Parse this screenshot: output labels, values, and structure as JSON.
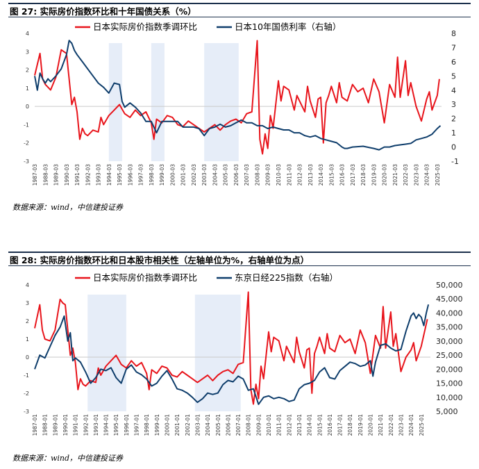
{
  "charts": [
    {
      "figure_title": "图 27: 实际房价指数环比和十年国债关系（%）",
      "source": "数据来源：wind，中信建投证券",
      "legend": [
        "日本实际房价指数季调环比",
        "日本10年国债利率（右轴）"
      ]
    },
    {
      "figure_title": "图 28: 实际房价指数环比和日本股市相关性（左轴单位为%，右轴单位为点）",
      "source": "数据来源：wind，中信建投证券",
      "legend": [
        "日本实际房价指数季调环比",
        "东京日经225指数（右轴）"
      ]
    }
  ],
  "chart_data": [
    {
      "type": "line",
      "x_range": [
        1987.0,
        2025.4
      ],
      "x_ticks": [
        "1987-03",
        "1988-03",
        "1989-03",
        "1990-03",
        "1991-03",
        "1992-03",
        "1993-03",
        "1994-03",
        "1995-03",
        "1996-03",
        "1997-03",
        "1998-03",
        "1999-03",
        "2000-03",
        "2001-03",
        "2002-03",
        "2003-03",
        "2004-03",
        "2005-03",
        "2006-03",
        "2007-03",
        "2008-03",
        "2009-03",
        "2010-03",
        "2011-03",
        "2012-03",
        "2013-03",
        "2014-03",
        "2015-03",
        "2016-03",
        "2017-03",
        "2018-03",
        "2019-03",
        "2020-03",
        "2021-03",
        "2022-03",
        "2023-03",
        "2024-03",
        "2025-03"
      ],
      "y_left": {
        "range": [
          -3,
          4
        ],
        "ticks": [
          "4",
          "3",
          "2",
          "1",
          "0",
          "-1",
          "-2",
          "-3"
        ]
      },
      "y_right": {
        "range": [
          -1,
          8
        ],
        "ticks": [
          "8",
          "7",
          "6",
          "5",
          "4",
          "3",
          "2",
          "1",
          "0",
          "-1"
        ]
      },
      "shaded_x_ranges": [
        [
          1994.0,
          1995.25
        ],
        [
          1998.0,
          1999.25
        ],
        [
          2003.0,
          2006.25
        ]
      ],
      "series": [
        {
          "name": "日本实际房价指数季调环比",
          "axis": "left",
          "color": "#e8141b",
          "x": [
            1987.0,
            1987.5,
            1987.75,
            1988.0,
            1988.5,
            1989.0,
            1989.5,
            1989.75,
            1990.0,
            1990.5,
            1990.75,
            1991.0,
            1991.25,
            1991.5,
            1991.75,
            1992.0,
            1992.5,
            1993.0,
            1993.25,
            1993.5,
            1994.0,
            1994.5,
            1995.0,
            1995.5,
            1996.0,
            1996.5,
            1997.0,
            1997.5,
            1998.0,
            1998.25,
            1998.5,
            1999.0,
            1999.5,
            2000.0,
            2000.5,
            2001.0,
            2001.5,
            2002.0,
            2002.5,
            2003.0,
            2003.5,
            2004.0,
            2004.5,
            2005.0,
            2005.5,
            2006.0,
            2006.5,
            2007.0,
            2007.5,
            2008.0,
            2008.25,
            2008.5,
            2008.75,
            2009.0,
            2009.25,
            2009.5,
            2010.0,
            2010.25,
            2010.5,
            2011.0,
            2011.5,
            2011.75,
            2012.0,
            2012.5,
            2012.75,
            2013.0,
            2013.5,
            2013.75,
            2014.0,
            2014.25,
            2014.5,
            2014.75,
            2015.0,
            2015.5,
            2015.75,
            2016.0,
            2016.5,
            2017.0,
            2017.5,
            2018.0,
            2018.5,
            2019.0,
            2019.5,
            2020.0,
            2020.5,
            2021.0,
            2021.25,
            2021.5,
            2022.0,
            2022.25,
            2022.5,
            2023.0,
            2023.5,
            2024.0,
            2024.25,
            2024.5,
            2025.0,
            2025.2
          ],
          "y": [
            1.7,
            2.9,
            1.5,
            1.2,
            0.9,
            1.6,
            3.1,
            3.0,
            2.9,
            0.1,
            0.5,
            -0.3,
            -1.8,
            -1.2,
            -1.5,
            -1.6,
            -1.3,
            -1.4,
            -0.6,
            -1.0,
            -0.5,
            -0.2,
            0.1,
            -0.4,
            -0.6,
            -0.2,
            -0.5,
            -0.3,
            -0.9,
            -1.8,
            -0.7,
            -0.9,
            -0.5,
            -0.6,
            -1.0,
            -1.1,
            -0.8,
            -1.0,
            -1.2,
            -1.4,
            -1.2,
            -1.0,
            -1.3,
            -1.0,
            -0.8,
            -0.7,
            -0.9,
            -0.4,
            -0.3,
            3.6,
            -1.8,
            -2.6,
            -1.5,
            -2.3,
            -0.5,
            -1.2,
            1.4,
            0.3,
            1.1,
            0.9,
            -0.2,
            0.6,
            0.3,
            -0.3,
            1.1,
            0.3,
            -0.6,
            0.4,
            0.5,
            -2.0,
            0.2,
            0.6,
            1.1,
            0.2,
            1.3,
            0.5,
            0.3,
            1.2,
            0.8,
            1.0,
            0.2,
            1.5,
            0.8,
            -0.9,
            1.2,
            0.5,
            2.7,
            0.5,
            2.5,
            0.6,
            1.3,
            0.0,
            -0.8,
            0.4,
            0.8,
            -0.2,
            0.6,
            1.5
          ]
        },
        {
          "name": "日本10年国债利率（右轴）",
          "axis": "right",
          "color": "#0e3d6b",
          "x": [
            1987.0,
            1987.25,
            1987.5,
            1987.75,
            1988.0,
            1988.25,
            1988.5,
            1989.0,
            1989.5,
            1990.0,
            1990.25,
            1990.5,
            1990.75,
            1991.0,
            1991.5,
            1992.0,
            1992.5,
            1993.0,
            1993.5,
            1994.0,
            1994.5,
            1995.0,
            1995.25,
            1995.5,
            1996.0,
            1996.5,
            1997.0,
            1997.5,
            1998.0,
            1998.5,
            1999.0,
            1999.5,
            2000.0,
            2000.5,
            2001.0,
            2001.5,
            2002.0,
            2002.5,
            2003.0,
            2003.5,
            2004.0,
            2004.5,
            2005.0,
            2005.5,
            2006.0,
            2006.5,
            2007.0,
            2007.5,
            2008.0,
            2008.5,
            2009.0,
            2009.5,
            2010.0,
            2010.5,
            2011.0,
            2011.5,
            2012.0,
            2012.5,
            2013.0,
            2013.5,
            2014.0,
            2014.5,
            2015.0,
            2015.5,
            2016.0,
            2016.25,
            2016.5,
            2017.0,
            2018.0,
            2019.0,
            2019.5,
            2020.0,
            2020.5,
            2021.0,
            2022.0,
            2022.5,
            2023.0,
            2023.5,
            2024.0,
            2024.5,
            2025.0,
            2025.3
          ],
          "y": [
            5.0,
            4.0,
            5.2,
            4.8,
            4.5,
            4.8,
            4.6,
            5.0,
            5.5,
            6.5,
            7.5,
            7.3,
            6.8,
            6.5,
            6.0,
            5.5,
            5.0,
            4.5,
            4.2,
            3.8,
            4.5,
            4.4,
            3.2,
            2.8,
            3.1,
            2.8,
            2.4,
            1.8,
            1.8,
            1.0,
            1.8,
            1.8,
            1.8,
            1.8,
            1.4,
            1.4,
            1.4,
            1.3,
            0.8,
            1.3,
            1.4,
            1.6,
            1.4,
            1.5,
            1.7,
            1.9,
            1.7,
            1.7,
            1.5,
            1.5,
            1.3,
            1.4,
            1.3,
            1.2,
            1.2,
            1.0,
            1.0,
            0.8,
            0.7,
            0.8,
            0.6,
            0.5,
            0.4,
            0.3,
            0.0,
            -0.1,
            -0.1,
            0.0,
            0.05,
            -0.1,
            -0.2,
            0.0,
            0.0,
            0.1,
            0.2,
            0.25,
            0.5,
            0.6,
            0.7,
            0.9,
            1.3,
            1.5
          ]
        }
      ]
    },
    {
      "type": "line",
      "x_range": [
        1987.0,
        2025.9
      ],
      "x_ticks": [
        "1987-01",
        "1988-01",
        "1989-01",
        "1990-01",
        "1991-01",
        "1992-01",
        "1993-01",
        "1994-01",
        "1995-01",
        "1996-01",
        "1997-01",
        "1998-01",
        "1999-01",
        "2000-01",
        "2001-01",
        "2002-01",
        "2003-01",
        "2004-01",
        "2005-01",
        "2006-01",
        "2007-01",
        "2008-01",
        "2009-01",
        "2010-01",
        "2011-01",
        "2012-01",
        "2013-01",
        "2014-01",
        "2015-01",
        "2016-01",
        "2017-01",
        "2018-01",
        "2019-01",
        "2020-01",
        "2021-01",
        "2022-01",
        "2023-01",
        "2024-01",
        "2025-01"
      ],
      "y_left": {
        "range": [
          -3,
          4
        ],
        "ticks": [
          "4",
          "3",
          "2",
          "1",
          "0",
          "-1",
          "-2",
          "-3"
        ]
      },
      "y_right": {
        "range": [
          5000,
          50000
        ],
        "ticks": [
          "50,000",
          "45,000",
          "40,000",
          "35,000",
          "30,000",
          "25,000",
          "20,000",
          "15,000",
          "10,000",
          "5,000"
        ]
      },
      "shaded_x_ranges": [
        [
          1992.2,
          1996.0
        ],
        [
          2002.75,
          2007.25
        ]
      ],
      "series": [
        {
          "name": "日本实际房价指数季调环比",
          "axis": "left",
          "color": "#e8141b",
          "x": [
            1987.0,
            1987.5,
            1987.75,
            1988.0,
            1988.5,
            1989.0,
            1989.5,
            1989.75,
            1990.0,
            1990.5,
            1990.75,
            1991.0,
            1991.25,
            1991.5,
            1991.75,
            1992.0,
            1992.5,
            1993.0,
            1993.25,
            1993.5,
            1994.0,
            1994.5,
            1995.0,
            1995.5,
            1996.0,
            1996.5,
            1997.0,
            1997.5,
            1998.0,
            1998.25,
            1998.5,
            1999.0,
            1999.5,
            2000.0,
            2000.5,
            2001.0,
            2001.5,
            2002.0,
            2002.5,
            2003.0,
            2003.5,
            2004.0,
            2004.5,
            2005.0,
            2005.5,
            2006.0,
            2006.5,
            2007.0,
            2007.5,
            2008.0,
            2008.25,
            2008.5,
            2008.75,
            2009.0,
            2009.25,
            2009.5,
            2010.0,
            2010.25,
            2010.5,
            2011.0,
            2011.5,
            2011.75,
            2012.0,
            2012.5,
            2012.75,
            2013.0,
            2013.5,
            2013.75,
            2014.0,
            2014.25,
            2014.5,
            2014.75,
            2015.0,
            2015.5,
            2015.75,
            2016.0,
            2016.5,
            2017.0,
            2017.5,
            2018.0,
            2018.5,
            2019.0,
            2019.5,
            2020.0,
            2020.5,
            2021.0,
            2021.25,
            2021.5,
            2022.0,
            2022.25,
            2022.5,
            2023.0,
            2023.5,
            2024.0,
            2024.25,
            2024.5,
            2025.0,
            2025.6
          ],
          "y": [
            1.6,
            2.9,
            1.5,
            1.0,
            0.9,
            1.5,
            3.2,
            3.0,
            2.9,
            0.1,
            0.5,
            -0.3,
            -1.8,
            -1.2,
            -1.5,
            -1.6,
            -1.3,
            -1.4,
            -0.6,
            -1.0,
            -0.5,
            -0.2,
            0.1,
            -0.4,
            -0.6,
            -0.2,
            -0.5,
            -0.3,
            -0.9,
            -1.8,
            -0.7,
            -0.9,
            -0.5,
            -0.6,
            -1.0,
            -1.1,
            -0.8,
            -1.0,
            -1.2,
            -1.4,
            -1.2,
            -1.0,
            -1.3,
            -1.0,
            -0.8,
            -0.7,
            -0.9,
            -0.4,
            -0.3,
            3.6,
            -1.8,
            -2.6,
            -1.5,
            -2.3,
            -0.5,
            -1.2,
            1.4,
            0.3,
            1.1,
            0.9,
            -0.2,
            0.6,
            0.3,
            -0.3,
            1.1,
            0.3,
            -0.6,
            0.4,
            0.5,
            -2.0,
            0.2,
            0.6,
            1.1,
            0.2,
            1.3,
            0.5,
            0.3,
            1.2,
            0.8,
            1.0,
            0.2,
            1.5,
            0.8,
            -0.9,
            1.2,
            0.5,
            2.8,
            0.5,
            2.5,
            0.6,
            1.3,
            -0.8,
            0.0,
            0.4,
            0.8,
            -0.2,
            0.6,
            2.1
          ]
        },
        {
          "name": "东京日经225指数（右轴）",
          "axis": "right",
          "color": "#0e3d6b",
          "x": [
            1987.0,
            1987.5,
            1988.0,
            1988.5,
            1989.0,
            1989.5,
            1989.9,
            1990.25,
            1990.5,
            1990.75,
            1991.0,
            1991.5,
            1992.0,
            1992.5,
            1993.0,
            1993.5,
            1994.0,
            1994.5,
            1995.0,
            1995.5,
            1996.0,
            1996.5,
            1997.0,
            1997.5,
            1998.0,
            1998.5,
            1999.0,
            1999.5,
            2000.0,
            2000.5,
            2001.0,
            2001.5,
            2002.0,
            2002.5,
            2003.0,
            2003.5,
            2004.0,
            2004.5,
            2005.0,
            2005.5,
            2006.0,
            2006.5,
            2007.0,
            2007.5,
            2008.0,
            2008.5,
            2009.0,
            2009.5,
            2010.0,
            2010.5,
            2011.0,
            2011.5,
            2012.0,
            2012.5,
            2013.0,
            2013.5,
            2014.0,
            2014.5,
            2015.0,
            2015.5,
            2016.0,
            2016.5,
            2017.0,
            2017.5,
            2018.0,
            2018.5,
            2019.0,
            2019.5,
            2020.0,
            2020.25,
            2020.5,
            2021.0,
            2021.5,
            2022.0,
            2022.5,
            2023.0,
            2023.5,
            2024.0,
            2024.25,
            2024.5,
            2024.75,
            2025.0,
            2025.25,
            2025.5,
            2025.7
          ],
          "y": [
            20000,
            25000,
            24000,
            28000,
            32000,
            35000,
            38900,
            30000,
            33000,
            23000,
            24000,
            22500,
            19000,
            15000,
            17000,
            20000,
            19500,
            20500,
            17000,
            15000,
            20000,
            21500,
            19000,
            18000,
            16500,
            14000,
            15000,
            17500,
            19500,
            16500,
            13000,
            12500,
            11500,
            10000,
            8200,
            9500,
            11500,
            11000,
            11500,
            14500,
            16000,
            15500,
            17500,
            16500,
            12500,
            13000,
            7500,
            10000,
            10500,
            9500,
            10000,
            9500,
            8500,
            9000,
            13000,
            14500,
            15000,
            16000,
            19000,
            20500,
            17000,
            16500,
            19500,
            21000,
            22500,
            22000,
            21000,
            21500,
            23000,
            17500,
            22500,
            28500,
            29000,
            27500,
            26500,
            27000,
            33500,
            39000,
            40000,
            38000,
            39500,
            38500,
            35500,
            40000,
            43000
          ]
        }
      ]
    }
  ]
}
